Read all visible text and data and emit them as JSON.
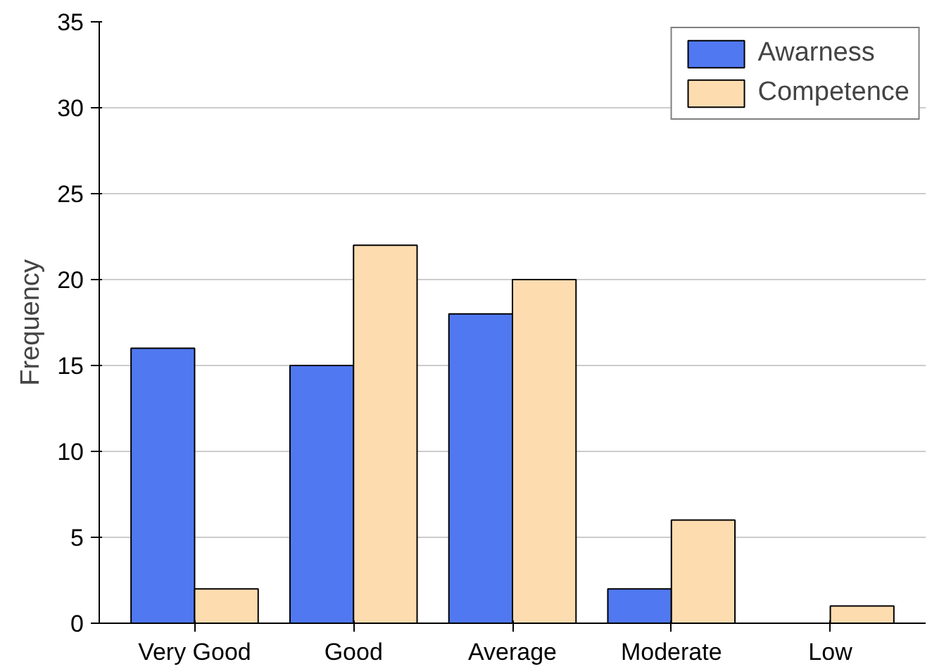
{
  "chart_data": {
    "type": "bar",
    "ylabel": "Frequency",
    "categories": [
      "Very Good",
      "Good",
      "Average",
      "Moderate",
      "Low"
    ],
    "series": [
      {
        "name": "Awarness",
        "color": "#5078f0",
        "values": [
          16,
          15,
          18,
          2,
          0
        ]
      },
      {
        "name": "Competence",
        "color": "#fddcb0",
        "values": [
          2,
          22,
          20,
          6,
          1
        ]
      }
    ],
    "ylim": [
      0,
      35
    ],
    "yticks": [
      0,
      5,
      10,
      15,
      20,
      25,
      30,
      35
    ],
    "grid": "y",
    "legend": "top right"
  }
}
